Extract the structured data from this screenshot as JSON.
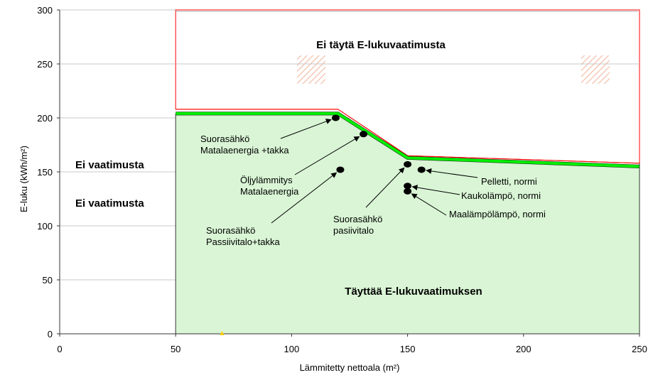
{
  "chart_data": {
    "type": "line",
    "xlabel": "Lämmitetty nettoala (m²)",
    "ylabel": "E-luku (kWh/m²)",
    "xlim": [
      0,
      250
    ],
    "ylim": [
      0,
      300
    ],
    "x_ticks": [
      0,
      50,
      100,
      150,
      200,
      250
    ],
    "y_ticks": [
      0,
      50,
      100,
      150,
      200,
      250,
      300
    ],
    "grid": "horizontal",
    "series": [
      {
        "points": [
          [
            50,
            204
          ],
          [
            120,
            204
          ],
          [
            150,
            163
          ],
          [
            250,
            155
          ]
        ],
        "color": "#00ee00"
      },
      {
        "points": [
          [
            50,
            208
          ],
          [
            120,
            208
          ],
          [
            150,
            165
          ],
          [
            250,
            158
          ]
        ],
        "color": "#ff0000"
      }
    ],
    "regions": {
      "fail": "Ei täytä E-lukuvaatimusta",
      "pass": "Täyttää E-lukuvaatimuksen",
      "no_requirement": [
        "Ei vaatimusta",
        "Ei vaatimusta"
      ]
    },
    "colors": {
      "pass_fill": "#d9f5d5",
      "limit_line": "#00ee00",
      "fail_outline": "#ff0000"
    },
    "points": [
      {
        "x": 119,
        "y": 200,
        "label": [
          "Suorasähkö",
          "Matalaenergia +takka"
        ]
      },
      {
        "x": 131,
        "y": 185,
        "label": [
          "Öljylämmitys",
          "Matalaenergia"
        ]
      },
      {
        "x": 121,
        "y": 152,
        "label": [
          "Suorasähkö",
          "Passiivitalo+takka"
        ]
      },
      {
        "x": 150,
        "y": 157,
        "label": [
          "Suorasähkö",
          "pasiivitalo"
        ]
      },
      {
        "x": 156,
        "y": 152,
        "label": [
          "Pelletti, normi"
        ]
      },
      {
        "x": 150,
        "y": 137,
        "label": [
          "Kaukolämpö, normi"
        ]
      },
      {
        "x": 150,
        "y": 132,
        "label": [
          "Maalämpölämpö, normi"
        ]
      }
    ]
  }
}
